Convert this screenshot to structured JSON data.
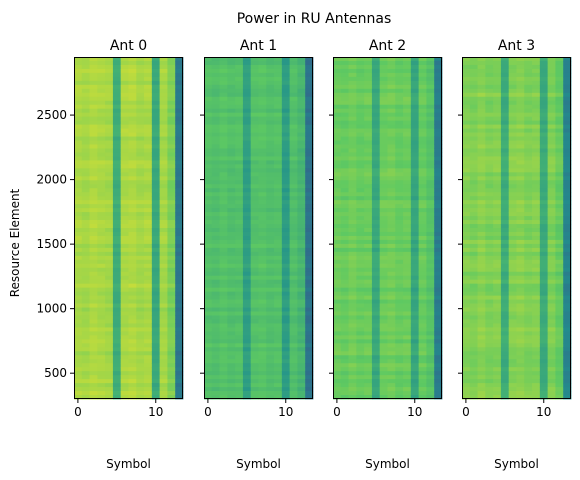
{
  "figure": {
    "suptitle": "Power in RU Antennas"
  },
  "chart_data": [
    {
      "type": "heatmap",
      "title": "Ant 0",
      "xlabel": "Symbol",
      "ylabel": "Resource Element",
      "xlim": [
        -0.5,
        13.5
      ],
      "ylim": [
        300,
        2950
      ],
      "xticks": [
        0,
        10
      ],
      "yticks": [
        500,
        1000,
        1500,
        2000,
        2500
      ],
      "show_ytick_labels": true,
      "base_level": 0.86,
      "symbol_levels": [
        0.87,
        0.86,
        0.88,
        0.87,
        0.86,
        0.62,
        0.87,
        0.88,
        0.86,
        0.87,
        0.6,
        0.86,
        0.8,
        0.4
      ]
    },
    {
      "type": "heatmap",
      "title": "Ant 1",
      "xlabel": "Symbol",
      "ylabel": "",
      "xlim": [
        -0.5,
        13.5
      ],
      "ylim": [
        300,
        2950
      ],
      "xticks": [
        0,
        10
      ],
      "yticks": [
        500,
        1000,
        1500,
        2000,
        2500
      ],
      "show_ytick_labels": false,
      "base_level": 0.7,
      "symbol_levels": [
        0.71,
        0.7,
        0.72,
        0.7,
        0.71,
        0.56,
        0.71,
        0.72,
        0.7,
        0.71,
        0.55,
        0.7,
        0.66,
        0.38
      ]
    },
    {
      "type": "heatmap",
      "title": "Ant 2",
      "xlabel": "Symbol",
      "ylabel": "",
      "xlim": [
        -0.5,
        13.5
      ],
      "ylim": [
        300,
        2950
      ],
      "xticks": [
        0,
        10
      ],
      "yticks": [
        500,
        1000,
        1500,
        2000,
        2500
      ],
      "show_ytick_labels": false,
      "base_level": 0.76,
      "symbol_levels": [
        0.77,
        0.76,
        0.78,
        0.76,
        0.77,
        0.6,
        0.77,
        0.78,
        0.76,
        0.77,
        0.59,
        0.76,
        0.72,
        0.42
      ]
    },
    {
      "type": "heatmap",
      "title": "Ant 3",
      "xlabel": "Symbol",
      "ylabel": "",
      "xlim": [
        -0.5,
        13.5
      ],
      "ylim": [
        300,
        2950
      ],
      "xticks": [
        0,
        10
      ],
      "yticks": [
        500,
        1000,
        1500,
        2000,
        2500
      ],
      "show_ytick_labels": false,
      "base_level": 0.8,
      "symbol_levels": [
        0.81,
        0.8,
        0.82,
        0.8,
        0.81,
        0.62,
        0.81,
        0.82,
        0.8,
        0.81,
        0.61,
        0.8,
        0.76,
        0.45
      ]
    }
  ]
}
